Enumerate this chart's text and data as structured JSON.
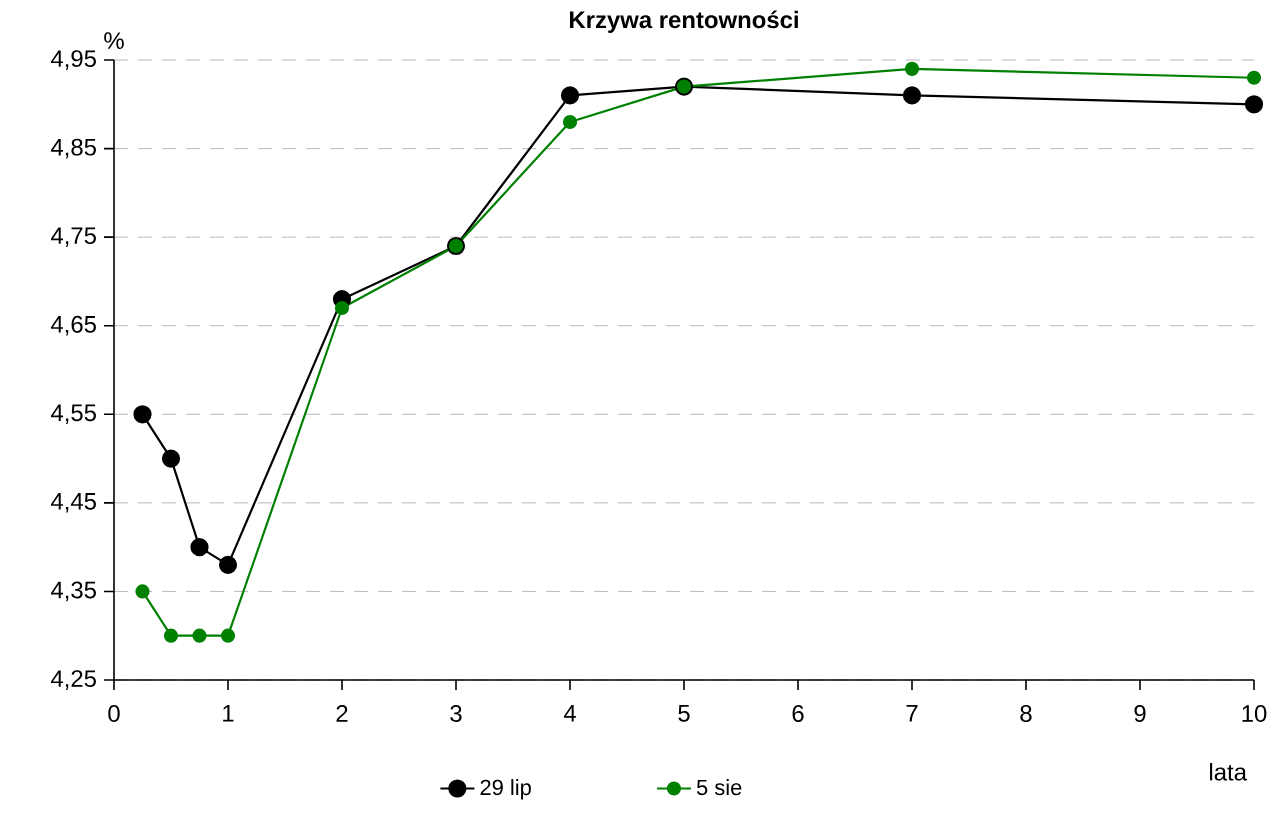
{
  "chart_data": {
    "type": "line",
    "title": "Krzywa rentowności",
    "xlabel": "lata",
    "ylabel": "%",
    "x": [
      0.25,
      0.5,
      0.75,
      1,
      2,
      3,
      4,
      5,
      7,
      10
    ],
    "series": [
      {
        "name": "29 lip",
        "color": "#000000",
        "values": [
          4.55,
          4.5,
          4.4,
          4.38,
          4.68,
          4.74,
          4.91,
          4.92,
          4.91,
          4.9
        ]
      },
      {
        "name": "5 sie",
        "color": "#008000",
        "values": [
          4.35,
          4.3,
          4.3,
          4.3,
          4.67,
          4.74,
          4.88,
          4.92,
          4.94,
          4.93
        ]
      }
    ],
    "xlim": [
      0,
      10
    ],
    "xticks": [
      0,
      1,
      2,
      3,
      4,
      5,
      6,
      7,
      8,
      9,
      10
    ],
    "ylim": [
      4.25,
      4.95
    ],
    "yticks": [
      {
        "value": 4.25,
        "label": "4,25"
      },
      {
        "value": 4.35,
        "label": "4,35"
      },
      {
        "value": 4.45,
        "label": "4,45"
      },
      {
        "value": 4.55,
        "label": "4,55"
      },
      {
        "value": 4.65,
        "label": "4,65"
      },
      {
        "value": 4.75,
        "label": "4,75"
      },
      {
        "value": 4.85,
        "label": "4,85"
      },
      {
        "value": 4.95,
        "label": "4,95"
      }
    ],
    "grid": "y",
    "legend": "bottom",
    "marker": "circle",
    "line_style": "solid"
  }
}
